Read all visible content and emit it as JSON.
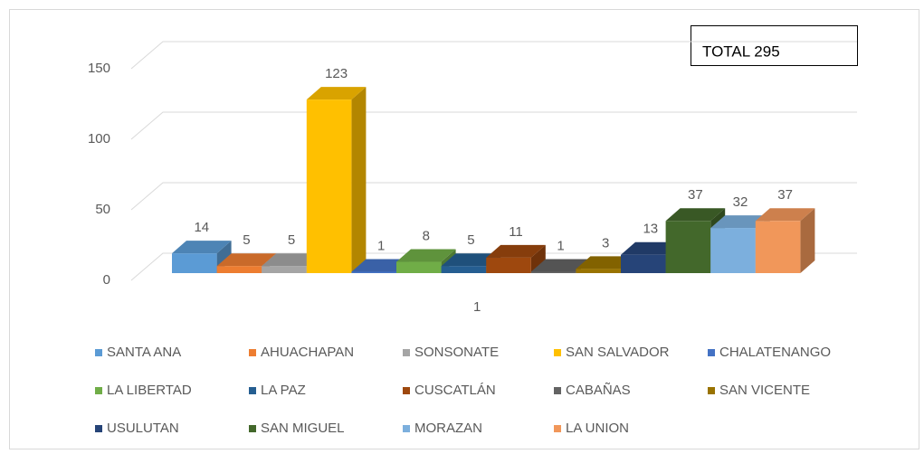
{
  "chart_data": {
    "type": "bar3d",
    "annotation": "TOTAL 295",
    "categories": [
      "1"
    ],
    "series": [
      {
        "name": "SANTA ANA",
        "color": "#5b9bd5",
        "values": [
          14
        ]
      },
      {
        "name": "AHUACHAPAN",
        "color": "#ed7d31",
        "values": [
          5
        ]
      },
      {
        "name": "SONSONATE",
        "color": "#a5a5a5",
        "values": [
          5
        ]
      },
      {
        "name": "SAN SALVADOR",
        "color": "#ffc000",
        "values": [
          123
        ]
      },
      {
        "name": "CHALATENANGO",
        "color": "#4472c4",
        "values": [
          1
        ]
      },
      {
        "name": "LA LIBERTAD",
        "color": "#70ad47",
        "values": [
          8
        ]
      },
      {
        "name": "LA PAZ",
        "color": "#255e91",
        "values": [
          5
        ]
      },
      {
        "name": "CUSCATLÁN",
        "color": "#9e480e",
        "values": [
          11
        ]
      },
      {
        "name": "CABAÑAS",
        "color": "#636363",
        "values": [
          1
        ]
      },
      {
        "name": "SAN VICENTE",
        "color": "#997300",
        "values": [
          3
        ]
      },
      {
        "name": "USULUTAN",
        "color": "#264478",
        "values": [
          13
        ]
      },
      {
        "name": "SAN MIGUEL",
        "color": "#43682b",
        "values": [
          37
        ]
      },
      {
        "name": "MORAZAN",
        "color": "#7cafdd",
        "values": [
          32
        ]
      },
      {
        "name": "LA UNION",
        "color": "#f1975a",
        "values": [
          37
        ]
      }
    ],
    "ylim": [
      0,
      150
    ],
    "yticks": [
      0,
      50,
      100,
      150
    ],
    "grid": true,
    "legend": "bottom"
  }
}
